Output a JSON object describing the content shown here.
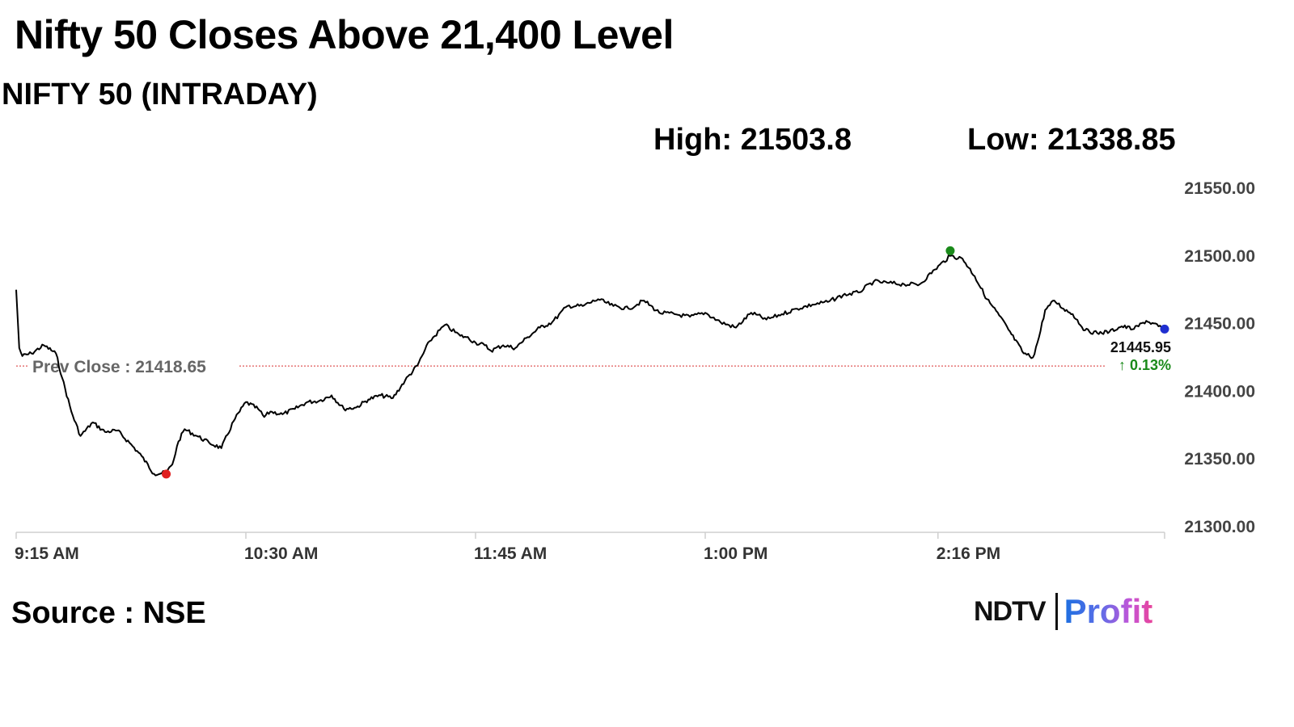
{
  "headline": "Nifty 50 Closes Above 21,400 Level",
  "source": "Source : NSE",
  "logo": {
    "brand": "NDTV",
    "product": "Profit"
  },
  "colors": {
    "line": "#000000",
    "prev_close": "#e05a5a",
    "high_marker": "#1a8a1a",
    "low_marker": "#e02020",
    "last_marker": "#1f2fd0",
    "change_up": "#1a8a1a"
  },
  "chart_data": {
    "type": "line",
    "title": "NIFTY 50 (INTRADAY)",
    "high_label": "High: 21503.8",
    "low_label": "Low: 21338.85",
    "high": 21503.8,
    "low": 21338.85,
    "prev_close": 21418.65,
    "prev_close_label": "Prev Close : 21418.65",
    "last_value": 21445.95,
    "last_label": "21445.95",
    "change_label": "↑ 0.13%",
    "xlabel": "",
    "ylabel": "",
    "ylim": [
      21300,
      21550
    ],
    "y_ticks": [
      "21550.00",
      "21500.00",
      "21450.00",
      "21400.00",
      "21350.00",
      "21300.00"
    ],
    "x_ticks": [
      "9:15 AM",
      "10:30 AM",
      "11:45 AM",
      "1:00 PM",
      "2:16 PM"
    ],
    "x_tick_times": [
      "09:15",
      "10:30",
      "11:45",
      "13:00",
      "14:16"
    ],
    "grid": false,
    "series": [
      {
        "x": [
          "09:15",
          "09:16",
          "09:17",
          "09:20",
          "09:24",
          "09:28",
          "09:30",
          "09:33",
          "09:36",
          "09:40",
          "09:44",
          "09:48",
          "09:52",
          "09:56",
          "10:00",
          "10:04",
          "10:06",
          "10:08",
          "10:10",
          "10:14",
          "10:18",
          "10:22",
          "10:26",
          "10:30",
          "10:34",
          "10:36",
          "10:38",
          "10:42",
          "10:46",
          "10:50",
          "10:54",
          "10:58",
          "11:02",
          "11:06",
          "11:10",
          "11:14",
          "11:18",
          "11:22",
          "11:26",
          "11:30",
          "11:35",
          "11:40",
          "11:42",
          "11:45",
          "11:48",
          "11:50",
          "11:54",
          "11:58",
          "12:02",
          "12:06",
          "12:10",
          "12:15",
          "12:20",
          "12:25",
          "12:30",
          "12:35",
          "12:40",
          "12:45",
          "12:50",
          "12:55",
          "13:00",
          "13:05",
          "13:10",
          "13:15",
          "13:20",
          "13:25",
          "13:30",
          "13:35",
          "13:40",
          "13:45",
          "13:50",
          "13:55",
          "14:00",
          "14:05",
          "14:10",
          "14:15",
          "14:20",
          "14:24",
          "14:28",
          "14:32",
          "14:36",
          "14:40",
          "14:44",
          "14:47",
          "14:49",
          "14:51",
          "14:54",
          "14:57",
          "15:00",
          "15:04",
          "15:08",
          "15:12",
          "15:16",
          "15:20",
          "15:24",
          "15:28",
          "15:30"
        ],
        "values": [
          21475,
          21432,
          21426,
          21428,
          21434,
          21428,
          21410,
          21385,
          21367,
          21377,
          21370,
          21371,
          21362,
          21352,
          21339,
          21340,
          21346,
          21363,
          21372,
          21367,
          21362,
          21358,
          21378,
          21392,
          21387,
          21381,
          21385,
          21383,
          21387,
          21392,
          21393,
          21397,
          21387,
          21388,
          21394,
          21397,
          21395,
          21408,
          21419,
          21437,
          21449,
          21441,
          21440,
          21436,
          21434,
          21430,
          21434,
          21432,
          21440,
          21447,
          21451,
          21463,
          21463,
          21468,
          21463,
          21461,
          21467,
          21458,
          21457,
          21455,
          21458,
          21451,
          21447,
          21458,
          21453,
          21457,
          21461,
          21464,
          21466,
          21471,
          21473,
          21481,
          21480,
          21479,
          21479,
          21490,
          21500,
          21498,
          21485,
          21468,
          21456,
          21442,
          21428,
          21425,
          21440,
          21460,
          21467,
          21461,
          21457,
          21445,
          21443,
          21444,
          21448,
          21446,
          21452,
          21448,
          21445.95
        ]
      }
    ]
  }
}
